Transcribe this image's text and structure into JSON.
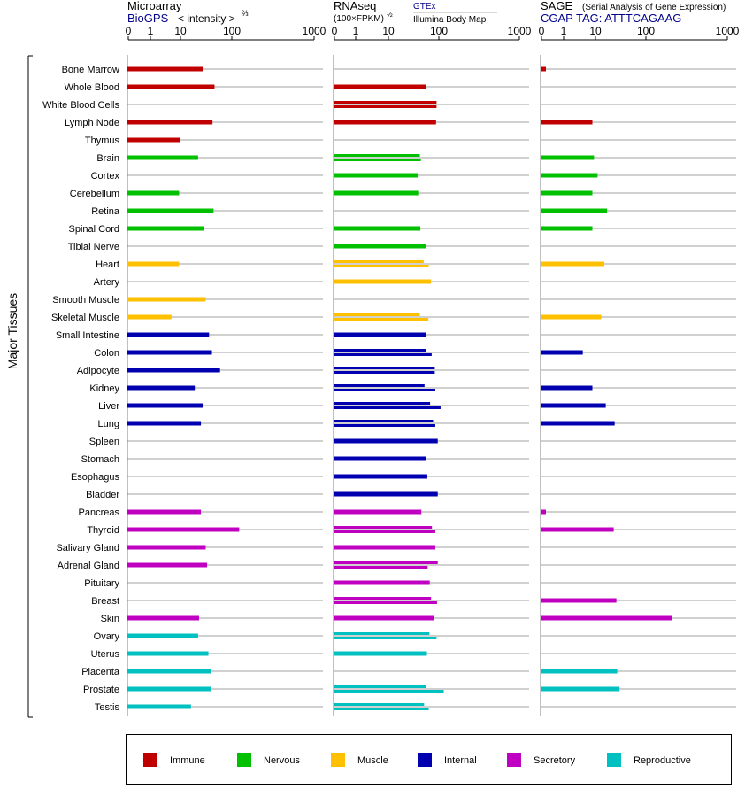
{
  "chart_data": {
    "type": "bar",
    "orientation": "horizontal",
    "side_label": "Major Tissues",
    "tissues": [
      "Bone Marrow",
      "Whole Blood",
      "White Blood Cells",
      "Lymph Node",
      "Thymus",
      "Brain",
      "Cortex",
      "Cerebellum",
      "Retina",
      "Spinal Cord",
      "Tibial Nerve",
      "Heart",
      "Artery",
      "Smooth Muscle",
      "Skeletal Muscle",
      "Small Intestine",
      "Colon",
      "Adipocyte",
      "Kidney",
      "Liver",
      "Lung",
      "Spleen",
      "Stomach",
      "Esophagus",
      "Bladder",
      "Pancreas",
      "Thyroid",
      "Salivary Gland",
      "Adrenal Gland",
      "Pituitary",
      "Breast",
      "Skin",
      "Ovary",
      "Uterus",
      "Placenta",
      "Prostate",
      "Testis"
    ],
    "groups": [
      {
        "name": "Immune",
        "color": "#c00000"
      },
      {
        "name": "Nervous",
        "color": "#00c000"
      },
      {
        "name": "Muscle",
        "color": "#ffc000"
      },
      {
        "name": "Internal",
        "color": "#0000b0"
      },
      {
        "name": "Secretory",
        "color": "#c000c0"
      },
      {
        "name": "Reproductive",
        "color": "#00c0c0"
      }
    ],
    "tissue_group": [
      "Immune",
      "Immune",
      "Immune",
      "Immune",
      "Immune",
      "Nervous",
      "Nervous",
      "Nervous",
      "Nervous",
      "Nervous",
      "Nervous",
      "Muscle",
      "Muscle",
      "Muscle",
      "Muscle",
      "Internal",
      "Internal",
      "Internal",
      "Internal",
      "Internal",
      "Internal",
      "Internal",
      "Internal",
      "Internal",
      "Internal",
      "Secretory",
      "Secretory",
      "Secretory",
      "Secretory",
      "Secretory",
      "Secretory",
      "Secretory",
      "Reproductive",
      "Reproductive",
      "Reproductive",
      "Reproductive",
      "Reproductive"
    ],
    "panels": [
      {
        "id": "microarray",
        "title": "Microarray",
        "source": "BioGPS",
        "unit": "< intensity >",
        "unit_exponent": "⅔",
        "ticks": [
          "0",
          "1",
          "10",
          "100",
          "1000"
        ],
        "tick_values": [
          0,
          1,
          10,
          100,
          1000
        ],
        "xlim": [
          0,
          1000
        ],
        "values": [
          [
            27
          ],
          [
            46
          ],
          [],
          [
            42
          ],
          [
            10
          ],
          [
            22
          ],
          [],
          [
            9
          ],
          [
            44
          ],
          [
            29
          ],
          [],
          [
            9
          ],
          [],
          [
            31
          ],
          [
            5
          ],
          [
            36
          ],
          [
            41
          ],
          [
            59
          ],
          [
            19
          ],
          [
            27
          ],
          [
            25
          ],
          [],
          [],
          [],
          [],
          [
            25
          ],
          [
            123
          ],
          [
            31
          ],
          [
            33
          ],
          [],
          [],
          [
            23
          ],
          [
            22
          ],
          [
            35
          ],
          [
            39
          ],
          [
            39
          ],
          [
            16
          ]
        ]
      },
      {
        "id": "rnaseq",
        "title": "RNAseq",
        "unit": "(100×FPKM)",
        "unit_exponent": "½",
        "source_1": "GTEx",
        "source_2": "Illumina Body Map",
        "ticks": [
          "0",
          "1",
          "10",
          "100",
          "1000"
        ],
        "tick_values": [
          0,
          1,
          10,
          100,
          1000
        ],
        "xlim": [
          0,
          1000
        ],
        "values": [
          [],
          [
            55
          ],
          [
            90,
            90
          ],
          [
            88
          ],
          [],
          [
            42,
            44
          ],
          [
            38
          ],
          [
            39
          ],
          [],
          [
            43
          ],
          [
            55
          ],
          [
            50,
            63
          ],
          [
            70
          ],
          [],
          [
            42,
            62
          ],
          [
            55
          ],
          [
            56,
            72
          ],
          [
            83,
            83
          ],
          [
            52,
            85
          ],
          [
            67,
            105
          ],
          [
            77,
            85
          ],
          [
            95
          ],
          [
            55
          ],
          [
            59
          ],
          [
            95
          ],
          [
            45
          ],
          [
            73,
            85
          ],
          [
            85
          ],
          [
            95,
            60
          ],
          [
            66
          ],
          [
            70,
            92
          ],
          [
            79
          ],
          [
            65,
            90
          ],
          [
            58
          ],
          [],
          [
            55,
            115
          ],
          [
            51,
            63
          ]
        ]
      },
      {
        "id": "sage",
        "title": "SAGE",
        "subtitle": "(Serial Analysis of Gene Expression)",
        "tag_label": "CGAP TAG: ATTTCAGAAG",
        "ticks": [
          "0",
          "1",
          "10",
          "100",
          "1000"
        ],
        "tick_values": [
          0,
          1,
          10,
          100,
          1000
        ],
        "xlim": [
          0,
          1000
        ],
        "values": [
          [
            0.2
          ],
          [],
          [],
          [
            8
          ],
          [],
          [
            9
          ],
          [
            11
          ],
          [
            8
          ],
          [
            17
          ],
          [
            8
          ],
          [],
          [
            15
          ],
          [],
          [],
          [
            13
          ],
          [],
          [
            4
          ],
          [],
          [
            8
          ],
          [
            16
          ],
          [
            24
          ],
          [],
          [],
          [],
          [],
          [
            0.2
          ],
          [
            23
          ],
          [],
          [],
          [],
          [
            26
          ],
          [
            210
          ],
          [],
          [],
          [
            27
          ],
          [
            30
          ],
          []
        ]
      }
    ]
  },
  "legend": {
    "items": [
      "Immune",
      "Nervous",
      "Muscle",
      "Internal",
      "Secretory",
      "Reproductive"
    ]
  }
}
